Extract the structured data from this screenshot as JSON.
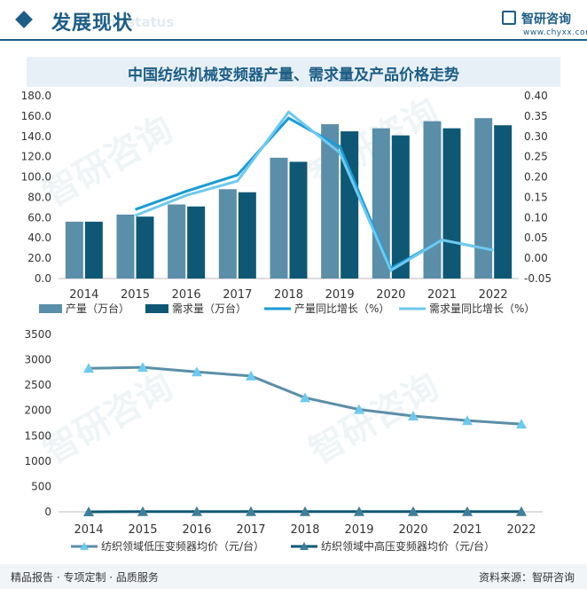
{
  "header": {
    "title": "发展现状",
    "subtitle": "ent status",
    "brand_name": "智研咨询",
    "brand_url": "www.chyxx.com"
  },
  "watermark": "智研咨询",
  "footer": {
    "left": "精品报告 · 专项定制 · 品质服务",
    "right": "资料来源：智研咨询"
  },
  "chart_data": [
    {
      "type": "bar",
      "title": "中国纺织机械变频器产量、需求量及产品价格走势",
      "categories": [
        "2014",
        "2015",
        "2016",
        "2017",
        "2018",
        "2019",
        "2020",
        "2021",
        "2022"
      ],
      "ylim": [
        0,
        180
      ],
      "yticks": [
        "0.0",
        "20.0",
        "40.0",
        "60.0",
        "80.0",
        "100.0",
        "120.0",
        "140.0",
        "160.0",
        "180.0"
      ],
      "y2lim": [
        -0.05,
        0.4
      ],
      "y2ticks": [
        "-0.05",
        "0.00",
        "0.05",
        "0.10",
        "0.15",
        "0.20",
        "0.25",
        "0.30",
        "0.35",
        "0.40"
      ],
      "series": [
        {
          "name": "产量（万台）",
          "kind": "bar",
          "color": "#5b8ea8",
          "values": [
            56,
            63,
            73,
            88,
            119,
            152,
            148,
            155,
            158
          ]
        },
        {
          "name": "需求量（万台）",
          "kind": "bar",
          "color": "#0f5875",
          "values": [
            56,
            61,
            71,
            85,
            115,
            145,
            141,
            148,
            151
          ]
        },
        {
          "name": "产量同比增长（%）",
          "kind": "line",
          "axis": "y2",
          "color": "#1a9bd7",
          "values": [
            null,
            0.12,
            0.165,
            0.205,
            0.345,
            0.275,
            -0.025,
            0.045,
            0.02
          ]
        },
        {
          "name": "需求量同比增长（%）",
          "kind": "line",
          "axis": "y2",
          "color": "#6ec9ef",
          "values": [
            null,
            0.105,
            0.155,
            0.19,
            0.36,
            0.26,
            -0.03,
            0.045,
            0.02
          ]
        }
      ],
      "legend": "bottom"
    },
    {
      "type": "line",
      "categories": [
        "2014",
        "2015",
        "2016",
        "2017",
        "2018",
        "2019",
        "2020",
        "2021",
        "2022"
      ],
      "ylim": [
        0,
        3500
      ],
      "yticks": [
        "0",
        "500",
        "1000",
        "1500",
        "2000",
        "2500",
        "3000",
        "3500"
      ],
      "series": [
        {
          "name": "纺织领域低压变频器均价（元/台）",
          "line_color": "#5b8ea8",
          "marker_color": "#6ec9ef",
          "values": [
            2830,
            2850,
            2760,
            2680,
            2250,
            2020,
            1890,
            1800,
            1730
          ]
        },
        {
          "name": "纺织领域中高压变频器均价（元/台）",
          "line_color": "#0f5875",
          "marker_color": "#3f7f9a",
          "values": [
            0,
            5,
            5,
            5,
            5,
            5,
            5,
            5,
            5
          ]
        }
      ],
      "legend": "bottom"
    }
  ]
}
